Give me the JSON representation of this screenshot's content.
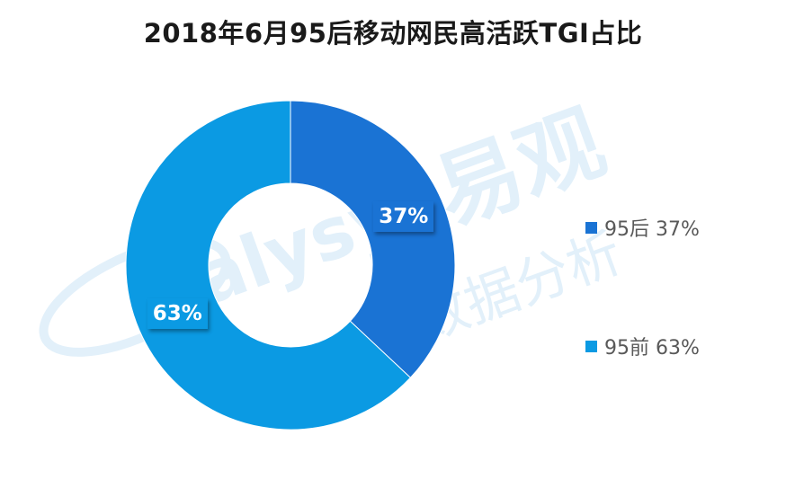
{
  "chart_data": {
    "type": "pie",
    "donut": true,
    "title": "2018年6月95后移动网民高活跃TGI占比",
    "slices": [
      {
        "name": "95后",
        "value": 37,
        "label": "37%",
        "legend_label": "95后 37%",
        "color": "#1A73D4"
      },
      {
        "name": "95前",
        "value": 63,
        "label": "63%",
        "legend_label": "95前 63%",
        "color": "#0B9AE3"
      }
    ],
    "legend_position": "right"
  },
  "watermark": {
    "brand": "易观",
    "latin": "alysys",
    "sub": "数据分析",
    "color": "#dcecf8"
  }
}
